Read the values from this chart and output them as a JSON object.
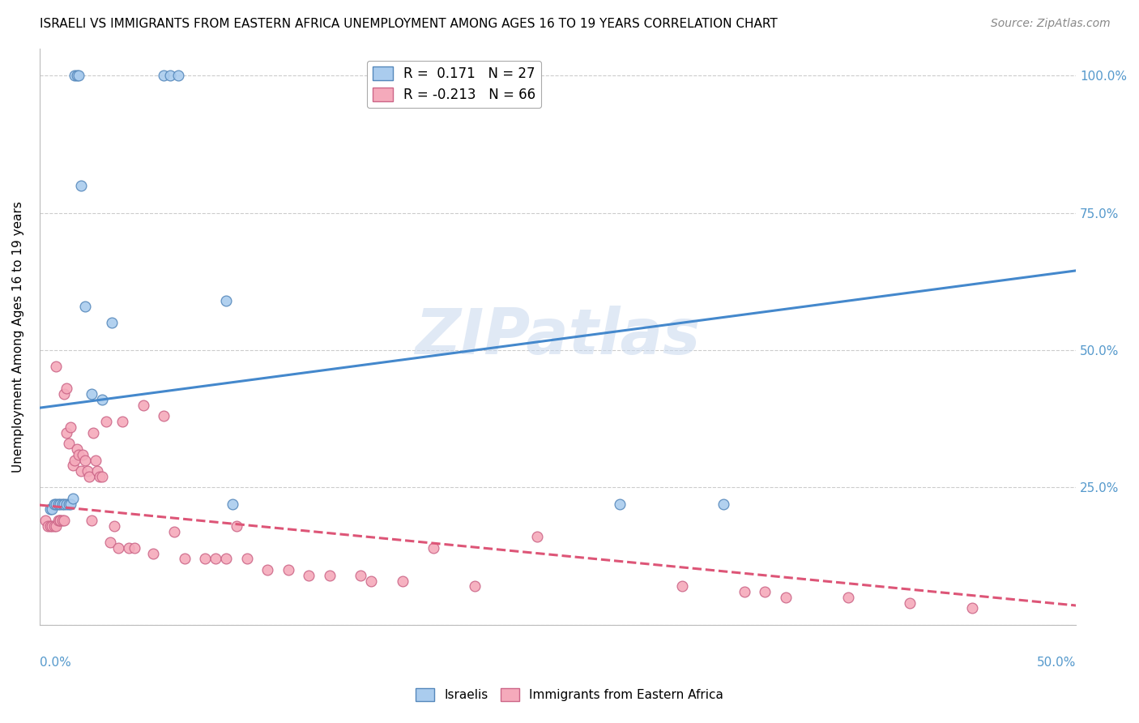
{
  "title": "ISRAELI VS IMMIGRANTS FROM EASTERN AFRICA UNEMPLOYMENT AMONG AGES 16 TO 19 YEARS CORRELATION CHART",
  "source": "Source: ZipAtlas.com",
  "ylabel": "Unemployment Among Ages 16 to 19 years",
  "yticks": [
    0.0,
    0.25,
    0.5,
    0.75,
    1.0
  ],
  "ytick_labels": [
    "",
    "25.0%",
    "50.0%",
    "75.0%",
    "100.0%"
  ],
  "xlim": [
    0.0,
    0.5
  ],
  "ylim": [
    0.0,
    1.05
  ],
  "watermark": "ZIPatlas",
  "legend_entries": [
    "Israelis",
    "Immigrants from Eastern Africa"
  ],
  "blue_color": "#aaccee",
  "blue_edge": "#5588bb",
  "pink_color": "#f5aabb",
  "pink_edge": "#cc6688",
  "blue_line_color": "#4488cc",
  "pink_line_color": "#dd5577",
  "blue_line_x0": 0.0,
  "blue_line_y0": 0.395,
  "blue_line_x1": 0.5,
  "blue_line_y1": 0.645,
  "pink_line_x0": 0.0,
  "pink_line_y0": 0.218,
  "pink_line_x1": 0.5,
  "pink_line_y1": 0.035,
  "israelis_x": [
    0.005,
    0.006,
    0.007,
    0.008,
    0.009,
    0.01,
    0.011,
    0.012,
    0.013,
    0.014,
    0.015,
    0.016,
    0.017,
    0.018,
    0.019,
    0.02,
    0.022,
    0.025,
    0.03,
    0.035,
    0.06,
    0.063,
    0.067,
    0.09,
    0.093,
    0.28,
    0.33
  ],
  "israelis_y": [
    0.21,
    0.21,
    0.22,
    0.22,
    0.22,
    0.22,
    0.22,
    0.22,
    0.22,
    0.22,
    0.22,
    0.23,
    1.0,
    1.0,
    1.0,
    0.8,
    0.58,
    0.42,
    0.41,
    0.55,
    1.0,
    1.0,
    1.0,
    0.59,
    0.22,
    0.22,
    0.22
  ],
  "immigrants_x": [
    0.003,
    0.004,
    0.005,
    0.006,
    0.007,
    0.008,
    0.008,
    0.009,
    0.01,
    0.01,
    0.011,
    0.012,
    0.012,
    0.013,
    0.013,
    0.014,
    0.015,
    0.016,
    0.017,
    0.018,
    0.019,
    0.02,
    0.021,
    0.022,
    0.023,
    0.024,
    0.025,
    0.026,
    0.027,
    0.028,
    0.029,
    0.03,
    0.032,
    0.034,
    0.036,
    0.038,
    0.04,
    0.043,
    0.046,
    0.05,
    0.055,
    0.06,
    0.065,
    0.07,
    0.08,
    0.085,
    0.09,
    0.095,
    0.1,
    0.11,
    0.12,
    0.13,
    0.14,
    0.155,
    0.16,
    0.175,
    0.19,
    0.21,
    0.24,
    0.31,
    0.34,
    0.35,
    0.36,
    0.39,
    0.42,
    0.45
  ],
  "immigrants_y": [
    0.19,
    0.18,
    0.18,
    0.18,
    0.18,
    0.18,
    0.47,
    0.19,
    0.19,
    0.19,
    0.19,
    0.42,
    0.19,
    0.35,
    0.43,
    0.33,
    0.36,
    0.29,
    0.3,
    0.32,
    0.31,
    0.28,
    0.31,
    0.3,
    0.28,
    0.27,
    0.19,
    0.35,
    0.3,
    0.28,
    0.27,
    0.27,
    0.37,
    0.15,
    0.18,
    0.14,
    0.37,
    0.14,
    0.14,
    0.4,
    0.13,
    0.38,
    0.17,
    0.12,
    0.12,
    0.12,
    0.12,
    0.18,
    0.12,
    0.1,
    0.1,
    0.09,
    0.09,
    0.09,
    0.08,
    0.08,
    0.14,
    0.07,
    0.16,
    0.07,
    0.06,
    0.06,
    0.05,
    0.05,
    0.04,
    0.03
  ]
}
